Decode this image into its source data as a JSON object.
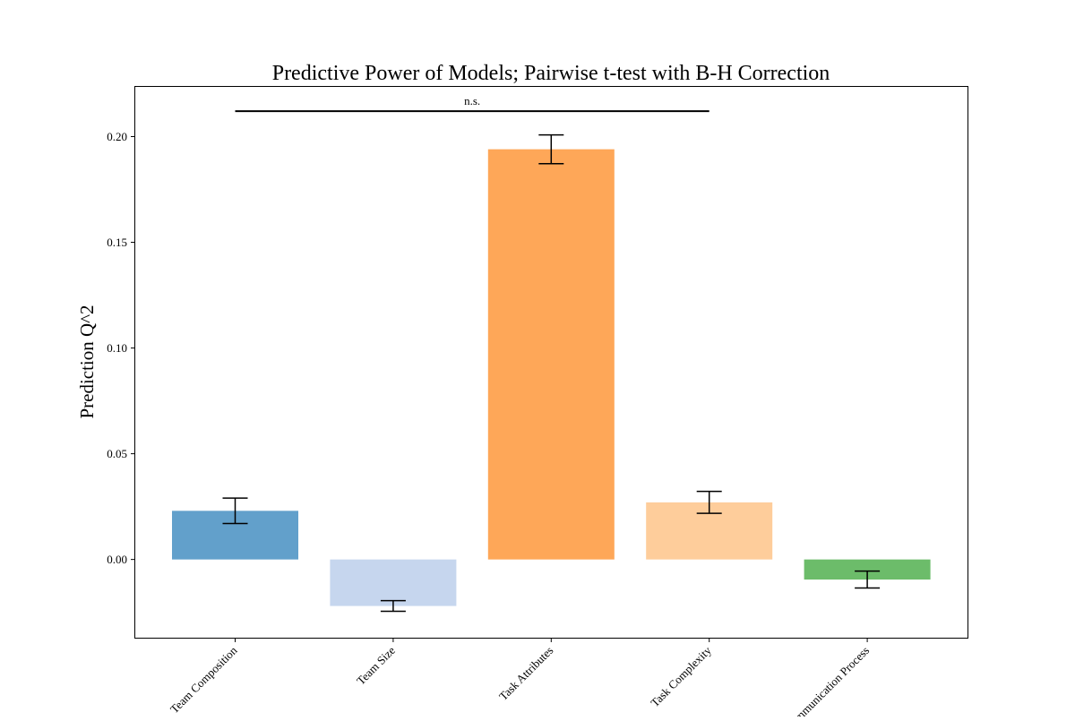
{
  "chart_data": {
    "type": "bar",
    "title": "Predictive Power of Models; Pairwise t-test with B-H Correction",
    "xlabel": "",
    "ylabel": "Prediction Q^2",
    "ylim": [
      -0.037,
      0.2235
    ],
    "yticks": [
      "0.00",
      "0.05",
      "0.10",
      "0.15",
      "0.20"
    ],
    "ytick_values": [
      0.0,
      0.05,
      0.1,
      0.15,
      0.2
    ],
    "categories": [
      "Team Composition",
      "Team Size",
      "Task Attributes",
      "Task Complexity",
      "Communication Process"
    ],
    "values": [
      0.023,
      -0.022,
      0.194,
      0.027,
      -0.0095
    ],
    "errors": [
      0.006,
      0.0025,
      0.0068,
      0.0052,
      0.004
    ],
    "colors": [
      "#62a0cb",
      "#c6d6ee",
      "#fea758",
      "#fecd9b",
      "#6cbc6a"
    ],
    "grid": false,
    "annotations": [
      {
        "text": "n.s.",
        "from_category": 0,
        "to_category": 3,
        "y": 0.212
      }
    ]
  }
}
